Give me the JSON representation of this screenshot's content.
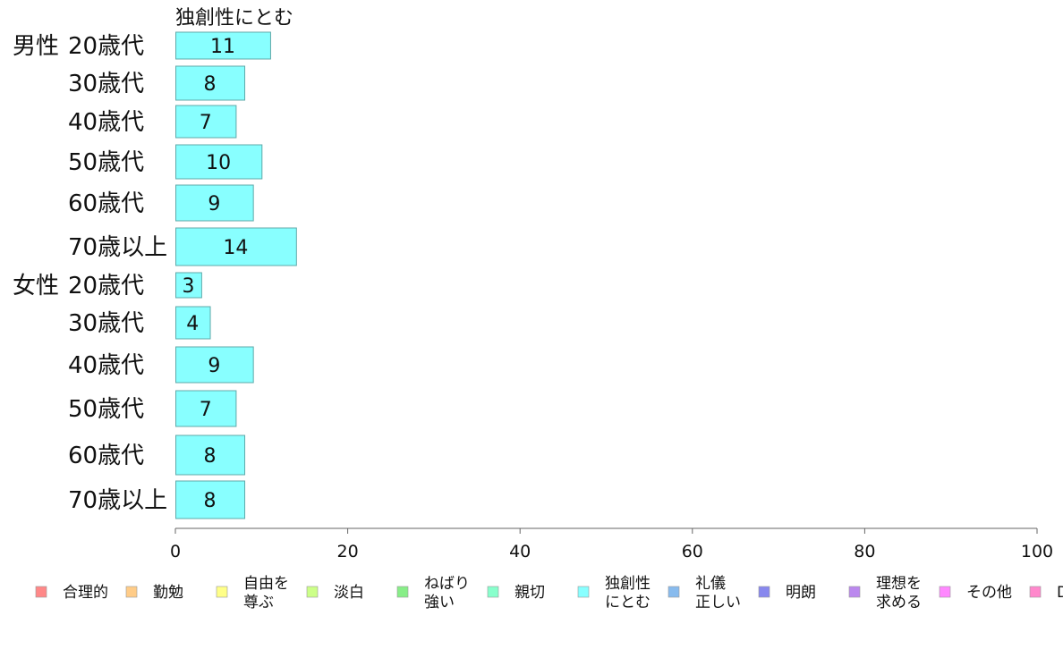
{
  "chart_data": {
    "type": "bar",
    "orientation": "horizontal",
    "series_title": "独創性にとむ",
    "groups": [
      {
        "label": "男性",
        "categories": [
          "20歳代",
          "30歳代",
          "40歳代",
          "50歳代",
          "60歳代",
          "70歳以上"
        ],
        "values": [
          11,
          8,
          7,
          10,
          9,
          14
        ]
      },
      {
        "label": "女性",
        "categories": [
          "20歳代",
          "30歳代",
          "40歳代",
          "50歳代",
          "60歳代",
          "70歳以上"
        ],
        "values": [
          3,
          4,
          9,
          7,
          8,
          8
        ]
      }
    ],
    "bar_color": "#88ffff",
    "bar_stroke": "#5fa9a9",
    "xlim": [
      0,
      100
    ],
    "xticks": [
      0,
      20,
      40,
      60,
      80,
      100
    ],
    "legend_position": "bottom",
    "legend": [
      {
        "label": [
          "合理的"
        ],
        "color": "#ff8888"
      },
      {
        "label": [
          "勤勉"
        ],
        "color": "#ffcc88"
      },
      {
        "label": [
          "自由を",
          "尊ぶ"
        ],
        "color": "#ffff88"
      },
      {
        "label": [
          "淡白"
        ],
        "color": "#ccff88"
      },
      {
        "label": [
          "ねばり",
          "強い"
        ],
        "color": "#88ee88"
      },
      {
        "label": [
          "親切"
        ],
        "color": "#88ffcc"
      },
      {
        "label": [
          "独創性",
          "にとむ"
        ],
        "color": "#88ffff"
      },
      {
        "label": [
          "礼儀",
          "正しい"
        ],
        "color": "#88bbee"
      },
      {
        "label": [
          "明朗"
        ],
        "color": "#8888ee"
      },
      {
        "label": [
          "理想を",
          "求める"
        ],
        "color": "#bb88ee"
      },
      {
        "label": [
          "その他"
        ],
        "color": "#ff88ff"
      },
      {
        "label": [
          "D"
        ],
        "color": "#ff88cc"
      }
    ]
  }
}
